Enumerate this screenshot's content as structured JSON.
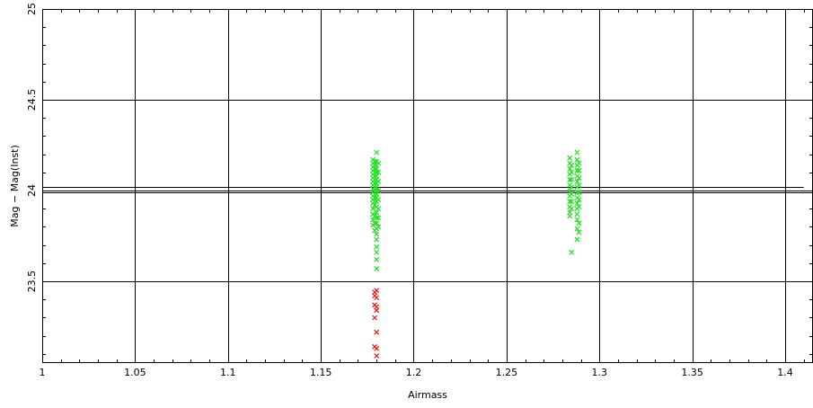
{
  "chart_data": {
    "type": "scatter",
    "xlabel": "Airmass",
    "ylabel": "Mag − Mag(Inst)",
    "xlim": [
      1.0,
      1.415
    ],
    "ylim": [
      23.05,
      25.0
    ],
    "xticks": [
      1,
      1.05,
      1.1,
      1.15,
      1.2,
      1.25,
      1.3,
      1.35,
      1.4
    ],
    "xtick_labels": [
      "1",
      "1.05",
      "1.1",
      "1.15",
      "1.2",
      "1.25",
      "1.3",
      "1.35",
      "1.4"
    ],
    "yticks": [
      23.5,
      24,
      24.5,
      25
    ],
    "ytick_labels": [
      "23.5",
      "24",
      "24.5",
      "25"
    ],
    "grid": true,
    "fit_lines": [
      {
        "y": 24.02,
        "x_range": [
          1.0,
          1.41
        ]
      },
      {
        "y": 23.99,
        "x_range": [
          1.0,
          1.415
        ]
      }
    ],
    "colors": {
      "accepted": "#22dd22",
      "rejected": "#ee1111",
      "grid": "#000000"
    },
    "series": [
      {
        "color": "#22dd22",
        "points": [
          {
            "x": 1.178,
            "y": 24.17
          },
          {
            "x": 1.178,
            "y": 24.15
          },
          {
            "x": 1.178,
            "y": 24.13
          },
          {
            "x": 1.178,
            "y": 24.11
          },
          {
            "x": 1.178,
            "y": 24.09
          },
          {
            "x": 1.178,
            "y": 24.07
          },
          {
            "x": 1.178,
            "y": 24.05
          },
          {
            "x": 1.178,
            "y": 24.03
          },
          {
            "x": 1.178,
            "y": 24.01
          },
          {
            "x": 1.178,
            "y": 23.99
          },
          {
            "x": 1.178,
            "y": 23.97
          },
          {
            "x": 1.178,
            "y": 23.95
          },
          {
            "x": 1.178,
            "y": 23.93
          },
          {
            "x": 1.178,
            "y": 23.9
          },
          {
            "x": 1.178,
            "y": 23.87
          },
          {
            "x": 1.178,
            "y": 23.84
          },
          {
            "x": 1.178,
            "y": 23.81
          },
          {
            "x": 1.179,
            "y": 24.16
          },
          {
            "x": 1.179,
            "y": 24.12
          },
          {
            "x": 1.179,
            "y": 24.08
          },
          {
            "x": 1.179,
            "y": 24.04
          },
          {
            "x": 1.179,
            "y": 24.0
          },
          {
            "x": 1.179,
            "y": 23.96
          },
          {
            "x": 1.179,
            "y": 23.92
          },
          {
            "x": 1.179,
            "y": 23.86
          },
          {
            "x": 1.179,
            "y": 23.82
          },
          {
            "x": 1.179,
            "y": 23.78
          },
          {
            "x": 1.18,
            "y": 24.21
          },
          {
            "x": 1.18,
            "y": 24.16
          },
          {
            "x": 1.18,
            "y": 24.14
          },
          {
            "x": 1.18,
            "y": 24.12
          },
          {
            "x": 1.18,
            "y": 24.1
          },
          {
            "x": 1.18,
            "y": 24.08
          },
          {
            "x": 1.18,
            "y": 24.06
          },
          {
            "x": 1.18,
            "y": 24.04
          },
          {
            "x": 1.18,
            "y": 24.02
          },
          {
            "x": 1.18,
            "y": 24.0
          },
          {
            "x": 1.18,
            "y": 23.98
          },
          {
            "x": 1.18,
            "y": 23.96
          },
          {
            "x": 1.18,
            "y": 23.94
          },
          {
            "x": 1.18,
            "y": 23.91
          },
          {
            "x": 1.18,
            "y": 23.88
          },
          {
            "x": 1.18,
            "y": 23.85
          },
          {
            "x": 1.18,
            "y": 23.82
          },
          {
            "x": 1.18,
            "y": 23.79
          },
          {
            "x": 1.18,
            "y": 23.76
          },
          {
            "x": 1.18,
            "y": 23.73
          },
          {
            "x": 1.18,
            "y": 23.69
          },
          {
            "x": 1.18,
            "y": 23.66
          },
          {
            "x": 1.18,
            "y": 23.62
          },
          {
            "x": 1.18,
            "y": 23.57
          },
          {
            "x": 1.181,
            "y": 24.15
          },
          {
            "x": 1.181,
            "y": 24.1
          },
          {
            "x": 1.181,
            "y": 24.05
          },
          {
            "x": 1.181,
            "y": 24.0
          },
          {
            "x": 1.181,
            "y": 23.95
          },
          {
            "x": 1.181,
            "y": 23.9
          },
          {
            "x": 1.181,
            "y": 23.85
          },
          {
            "x": 1.181,
            "y": 23.8
          },
          {
            "x": 1.284,
            "y": 24.18
          },
          {
            "x": 1.284,
            "y": 24.15
          },
          {
            "x": 1.284,
            "y": 24.12
          },
          {
            "x": 1.284,
            "y": 24.09
          },
          {
            "x": 1.284,
            "y": 24.06
          },
          {
            "x": 1.284,
            "y": 24.03
          },
          {
            "x": 1.284,
            "y": 24.0
          },
          {
            "x": 1.284,
            "y": 23.97
          },
          {
            "x": 1.284,
            "y": 23.94
          },
          {
            "x": 1.284,
            "y": 23.91
          },
          {
            "x": 1.284,
            "y": 23.88
          },
          {
            "x": 1.284,
            "y": 23.86
          },
          {
            "x": 1.285,
            "y": 24.14
          },
          {
            "x": 1.285,
            "y": 24.1
          },
          {
            "x": 1.285,
            "y": 24.06
          },
          {
            "x": 1.285,
            "y": 24.02
          },
          {
            "x": 1.285,
            "y": 23.98
          },
          {
            "x": 1.285,
            "y": 23.94
          },
          {
            "x": 1.285,
            "y": 23.9
          },
          {
            "x": 1.285,
            "y": 23.66
          },
          {
            "x": 1.288,
            "y": 24.21
          },
          {
            "x": 1.288,
            "y": 24.17
          },
          {
            "x": 1.288,
            "y": 24.14
          },
          {
            "x": 1.288,
            "y": 24.11
          },
          {
            "x": 1.288,
            "y": 24.08
          },
          {
            "x": 1.288,
            "y": 24.05
          },
          {
            "x": 1.288,
            "y": 24.02
          },
          {
            "x": 1.288,
            "y": 23.99
          },
          {
            "x": 1.288,
            "y": 23.96
          },
          {
            "x": 1.288,
            "y": 23.93
          },
          {
            "x": 1.288,
            "y": 23.9
          },
          {
            "x": 1.288,
            "y": 23.87
          },
          {
            "x": 1.288,
            "y": 23.84
          },
          {
            "x": 1.288,
            "y": 23.79
          },
          {
            "x": 1.288,
            "y": 23.73
          },
          {
            "x": 1.289,
            "y": 24.15
          },
          {
            "x": 1.289,
            "y": 24.11
          },
          {
            "x": 1.289,
            "y": 24.07
          },
          {
            "x": 1.289,
            "y": 24.03
          },
          {
            "x": 1.289,
            "y": 23.99
          },
          {
            "x": 1.289,
            "y": 23.95
          },
          {
            "x": 1.289,
            "y": 23.91
          },
          {
            "x": 1.289,
            "y": 23.82
          },
          {
            "x": 1.289,
            "y": 23.77
          }
        ]
      },
      {
        "color": "#ee1111",
        "points": [
          {
            "x": 1.179,
            "y": 23.44
          },
          {
            "x": 1.18,
            "y": 23.45
          },
          {
            "x": 1.179,
            "y": 23.42
          },
          {
            "x": 1.18,
            "y": 23.41
          },
          {
            "x": 1.179,
            "y": 23.37
          },
          {
            "x": 1.18,
            "y": 23.36
          },
          {
            "x": 1.18,
            "y": 23.34
          },
          {
            "x": 1.179,
            "y": 23.3
          },
          {
            "x": 1.18,
            "y": 23.22
          },
          {
            "x": 1.179,
            "y": 23.14
          },
          {
            "x": 1.18,
            "y": 23.13
          },
          {
            "x": 1.18,
            "y": 23.09
          }
        ]
      }
    ]
  }
}
